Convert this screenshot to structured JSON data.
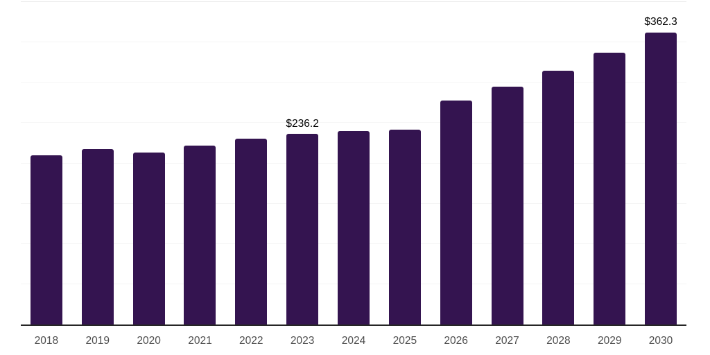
{
  "page": {
    "background": "#ffffff"
  },
  "chart_data": {
    "type": "bar",
    "title": "",
    "xlabel": "",
    "ylabel": "",
    "legend": "none",
    "grid": "horizontal",
    "y_axis_tick_labels": "hidden",
    "ylim": [
      0,
      400
    ],
    "grid_step": 50,
    "categories": [
      "2018",
      "2019",
      "2020",
      "2021",
      "2022",
      "2023",
      "2024",
      "2025",
      "2026",
      "2027",
      "2028",
      "2029",
      "2030"
    ],
    "values": [
      210.0,
      217.5,
      213.0,
      222.3,
      230.2,
      236.2,
      240.4,
      242.1,
      277.9,
      295.0,
      314.9,
      337.0,
      362.3
    ],
    "data_labels": {
      "2023": "$236.2",
      "2030": "$362.3"
    },
    "colors": {
      "bar": "#341450",
      "grid_line": "#f5f5f5",
      "top_grid_line": "#e9e9e9",
      "axis_line": "#262626",
      "tick_label": "#4d4d4d",
      "data_label": "#000000"
    }
  }
}
